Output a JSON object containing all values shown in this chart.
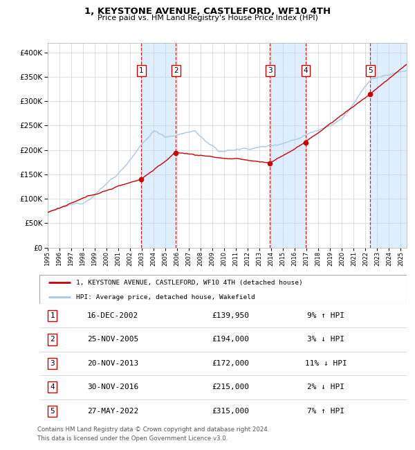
{
  "title": "1, KEYSTONE AVENUE, CASTLEFORD, WF10 4TH",
  "subtitle": "Price paid vs. HM Land Registry's House Price Index (HPI)",
  "legend_line1": "1, KEYSTONE AVENUE, CASTLEFORD, WF10 4TH (detached house)",
  "legend_line2": "HPI: Average price, detached house, Wakefield",
  "footer1": "Contains HM Land Registry data © Crown copyright and database right 2024.",
  "footer2": "This data is licensed under the Open Government Licence v3.0.",
  "transactions": [
    {
      "num": 1,
      "date": "16-DEC-2002",
      "price": 139950,
      "year": 2002.96,
      "hpi_pct": "9%",
      "hpi_dir": "↑"
    },
    {
      "num": 2,
      "date": "25-NOV-2005",
      "price": 194000,
      "year": 2005.9,
      "hpi_pct": "3%",
      "hpi_dir": "↓"
    },
    {
      "num": 3,
      "date": "20-NOV-2013",
      "price": 172000,
      "year": 2013.89,
      "hpi_pct": "11%",
      "hpi_dir": "↓"
    },
    {
      "num": 4,
      "date": "30-NOV-2016",
      "price": 215000,
      "year": 2016.91,
      "hpi_pct": "2%",
      "hpi_dir": "↓"
    },
    {
      "num": 5,
      "date": "27-MAY-2022",
      "price": 315000,
      "year": 2022.41,
      "hpi_pct": "7%",
      "hpi_dir": "↑"
    }
  ],
  "hpi_color": "#a8c8e8",
  "price_color": "#cc0000",
  "shade_color": "#ddeeff",
  "vline_color": "#cc0000",
  "box_edge_color": "#cc0000",
  "ylim": [
    0,
    420000
  ],
  "xlim_start": 1995.0,
  "xlim_end": 2025.5
}
